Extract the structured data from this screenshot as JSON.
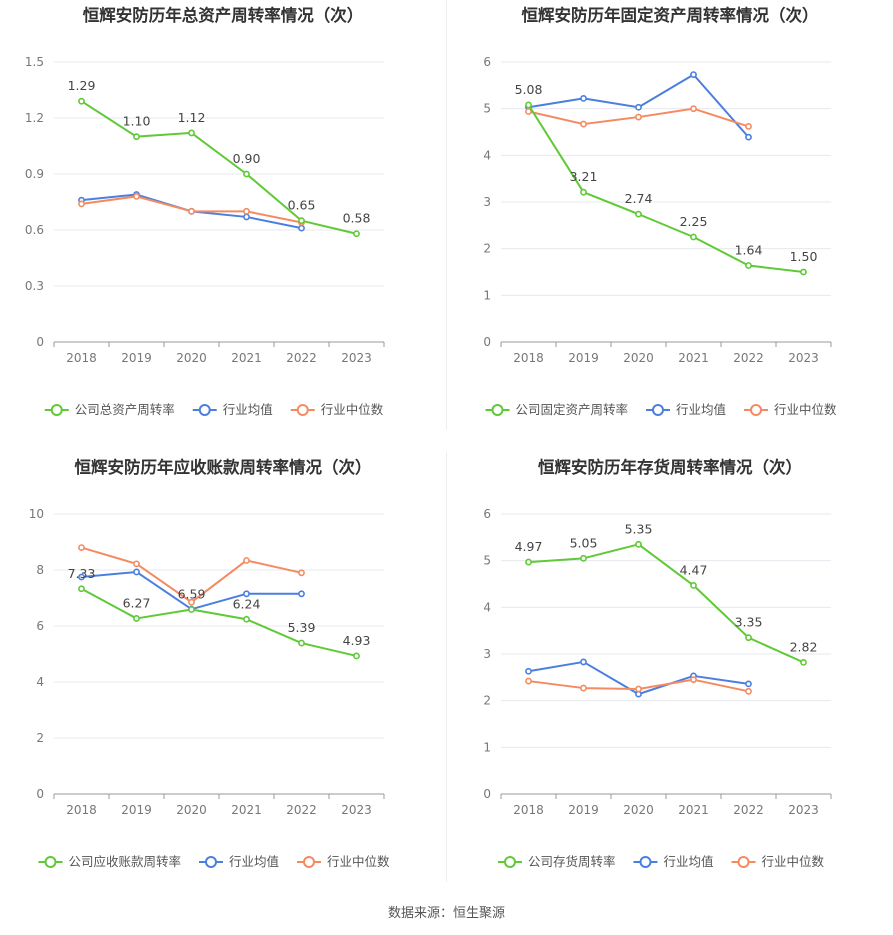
{
  "colors": {
    "company": "#5fc936",
    "industry_avg": "#4a7fe0",
    "industry_median": "#f58a61",
    "grid": "#e6e8ef",
    "axis": "#999999",
    "tick": "#777777",
    "title": "#333333",
    "label": "#444444"
  },
  "source": "数据来源：恒生聚源",
  "chart_data": [
    {
      "type": "line",
      "title": "恒辉安防历年总资产周转率情况（次）",
      "categories": [
        "2018",
        "2019",
        "2020",
        "2021",
        "2022",
        "2023"
      ],
      "ylim": [
        0,
        1.5
      ],
      "yticks": [
        "0",
        "0.3",
        "0.6",
        "0.9",
        "1.2",
        "1.5"
      ],
      "ytick_values": [
        0,
        0.3,
        0.6,
        0.9,
        1.2,
        1.5
      ],
      "grid": true,
      "legend_position": "bottom",
      "series": [
        {
          "name": "公司总资产周转率",
          "role": "company",
          "values": [
            1.29,
            1.1,
            1.12,
            0.9,
            0.65,
            0.58
          ],
          "labels": [
            "1.29",
            "1.10",
            "1.12",
            "0.90",
            "0.65",
            "0.58"
          ]
        },
        {
          "name": "行业均值",
          "role": "industry_avg",
          "values": [
            0.76,
            0.79,
            0.7,
            0.67,
            0.61,
            null
          ]
        },
        {
          "name": "行业中位数",
          "role": "industry_median",
          "values": [
            0.74,
            0.78,
            0.7,
            0.7,
            0.64,
            null
          ]
        }
      ]
    },
    {
      "type": "line",
      "title": "恒辉安防历年固定资产周转率情况（次）",
      "categories": [
        "2018",
        "2019",
        "2020",
        "2021",
        "2022",
        "2023"
      ],
      "ylim": [
        0,
        6
      ],
      "yticks": [
        "0",
        "1",
        "2",
        "3",
        "4",
        "5",
        "6"
      ],
      "ytick_values": [
        0,
        1,
        2,
        3,
        4,
        5,
        6
      ],
      "grid": true,
      "legend_position": "bottom",
      "series": [
        {
          "name": "公司固定资产周转率",
          "role": "company",
          "values": [
            5.08,
            3.21,
            2.74,
            2.25,
            1.64,
            1.5
          ],
          "labels": [
            "5.08",
            "3.21",
            "2.74",
            "2.25",
            "1.64",
            "1.50"
          ]
        },
        {
          "name": "行业均值",
          "role": "industry_avg",
          "values": [
            5.03,
            5.22,
            5.03,
            5.73,
            4.39,
            null
          ]
        },
        {
          "name": "行业中位数",
          "role": "industry_median",
          "values": [
            4.94,
            4.67,
            4.82,
            5.0,
            4.62,
            null
          ]
        }
      ]
    },
    {
      "type": "line",
      "title": "恒辉安防历年应收账款周转率情况（次）",
      "categories": [
        "2018",
        "2019",
        "2020",
        "2021",
        "2022",
        "2023"
      ],
      "ylim": [
        0,
        10
      ],
      "yticks": [
        "0",
        "2",
        "4",
        "6",
        "8",
        "10"
      ],
      "ytick_values": [
        0,
        2,
        4,
        6,
        8,
        10
      ],
      "grid": true,
      "legend_position": "bottom",
      "series": [
        {
          "name": "公司应收账款周转率",
          "role": "company",
          "values": [
            7.33,
            6.27,
            6.59,
            6.24,
            5.39,
            4.93
          ],
          "labels": [
            "7.33",
            "6.27",
            "6.59",
            "6.24",
            "5.39",
            "4.93"
          ]
        },
        {
          "name": "行业均值",
          "role": "industry_avg",
          "values": [
            7.75,
            7.93,
            6.6,
            7.15,
            7.15,
            null
          ]
        },
        {
          "name": "行业中位数",
          "role": "industry_median",
          "values": [
            8.8,
            8.22,
            6.85,
            8.34,
            7.9,
            null
          ]
        }
      ]
    },
    {
      "type": "line",
      "title": "恒辉安防历年存货周转率情况（次）",
      "categories": [
        "2018",
        "2019",
        "2020",
        "2021",
        "2022",
        "2023"
      ],
      "ylim": [
        0,
        6
      ],
      "yticks": [
        "0",
        "1",
        "2",
        "3",
        "4",
        "5",
        "6"
      ],
      "ytick_values": [
        0,
        1,
        2,
        3,
        4,
        5,
        6
      ],
      "grid": true,
      "legend_position": "bottom",
      "series": [
        {
          "name": "公司存货周转率",
          "role": "company",
          "values": [
            4.97,
            5.05,
            5.35,
            4.47,
            3.35,
            2.82
          ],
          "labels": [
            "4.97",
            "5.05",
            "5.35",
            "4.47",
            "3.35",
            "2.82"
          ]
        },
        {
          "name": "行业均值",
          "role": "industry_avg",
          "values": [
            2.63,
            2.83,
            2.14,
            2.53,
            2.36,
            null
          ]
        },
        {
          "name": "行业中位数",
          "role": "industry_median",
          "values": [
            2.42,
            2.27,
            2.25,
            2.45,
            2.2,
            null
          ]
        }
      ]
    }
  ]
}
